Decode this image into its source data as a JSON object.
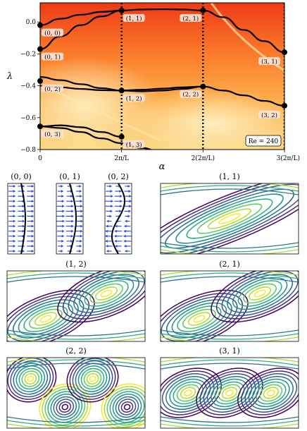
{
  "chart_data": [
    {
      "type": "line",
      "subtype": "spectrum over heatmap",
      "xlabel": "α",
      "ylabel": "λ",
      "xlim": [
        0,
        3
      ],
      "ylim": [
        -0.8,
        0.12
      ],
      "xticks": [
        0,
        1,
        2,
        3
      ],
      "xtick_labels": [
        "0",
        "2π/L",
        "2(2π/L)",
        "3(2π/L)"
      ],
      "yticks": [
        0.0,
        -0.2,
        -0.4,
        -0.6,
        -0.8
      ],
      "ytick_labels": [
        "0.0",
        "−0.2",
        "−0.4",
        "−0.6",
        "−0.8"
      ],
      "annotation": "Re = 240",
      "grid": false,
      "vlines": [
        1,
        2,
        3
      ],
      "heatmap_colormap": "YlOrRd",
      "series": [
        {
          "x": [
            0,
            0.25,
            0.5,
            0.75,
            1.0,
            1.25,
            1.5,
            1.75,
            2.0,
            2.25,
            2.5,
            2.75,
            3.0
          ],
          "y": [
            -0.02,
            0.02,
            0.045,
            0.063,
            0.072,
            0.078,
            0.08,
            0.078,
            0.072,
            0.03,
            -0.05,
            -0.12,
            -0.19
          ]
        },
        {
          "x": [
            0,
            0.25,
            0.5,
            0.75,
            1.0
          ],
          "y": [
            -0.17,
            -0.09,
            -0.02,
            0.035,
            0.072
          ]
        },
        {
          "x": [
            0,
            0.25,
            0.5,
            0.75,
            1.0,
            1.25,
            1.5,
            1.75,
            2.0,
            2.25,
            2.5,
            2.75,
            3.0
          ],
          "y": [
            -0.345,
            -0.365,
            -0.39,
            -0.415,
            -0.43,
            -0.435,
            -0.43,
            -0.42,
            -0.405,
            -0.43,
            -0.46,
            -0.495,
            -0.525
          ]
        },
        {
          "x": [
            0,
            0.25,
            0.5,
            0.75,
            1.0,
            1.25,
            1.5,
            1.75,
            2.0
          ],
          "y": [
            -0.4,
            -0.41,
            -0.42,
            -0.428,
            -0.43,
            -0.425,
            -0.418,
            -0.41,
            -0.405
          ]
        },
        {
          "x": [
            0,
            0.25,
            0.5,
            0.75,
            1.0,
            1.25,
            1.5,
            1.75,
            2.0
          ],
          "y": [
            -0.655,
            -0.665,
            -0.69,
            -0.73,
            -0.76,
            -0.79,
            -0.82,
            -0.85,
            -0.88
          ]
        },
        {
          "x": [
            0,
            0.25,
            0.5,
            0.75,
            1.0
          ],
          "y": [
            -0.655,
            -0.648,
            -0.66,
            -0.69,
            -0.72
          ]
        }
      ],
      "points": [
        {
          "label": "(0, 0)",
          "x": 0,
          "y": -0.02
        },
        {
          "label": "(0, 1)",
          "x": 0,
          "y": -0.17
        },
        {
          "label": "(0, 2)",
          "x": 0,
          "y": -0.37
        },
        {
          "label": "(0, 3)",
          "x": 0,
          "y": -0.655
        },
        {
          "label": "(1, 1)",
          "x": 1,
          "y": 0.072
        },
        {
          "label": "(1, 2)",
          "x": 1,
          "y": -0.43
        },
        {
          "label": "(1, 3)",
          "x": 1,
          "y": -0.72
        },
        {
          "label": "(2, 1)",
          "x": 2,
          "y": 0.072
        },
        {
          "label": "(2, 2)",
          "x": 2,
          "y": -0.405
        },
        {
          "label": "(3, 1)",
          "x": 3,
          "y": -0.19
        },
        {
          "label": "(3, 2)",
          "x": 3,
          "y": -0.525
        }
      ]
    },
    {
      "type": "table",
      "subtype": "mode shape panels",
      "panels": [
        {
          "title": "(0, 0)",
          "kind": "quiver",
          "waves": 0
        },
        {
          "title": "(0, 1)",
          "kind": "quiver",
          "waves": 1
        },
        {
          "title": "(0, 2)",
          "kind": "quiver",
          "waves": 2
        },
        {
          "title": "(1, 1)",
          "kind": "contour",
          "centers": 1
        },
        {
          "title": "(1, 2)",
          "kind": "contour",
          "centers": 2
        },
        {
          "title": "(2, 1)",
          "kind": "contour",
          "centers": 2
        },
        {
          "title": "(2, 2)",
          "kind": "contour",
          "centers": 4
        },
        {
          "title": "(3, 1)",
          "kind": "contour",
          "centers": 3
        }
      ],
      "colormap": "viridis"
    }
  ]
}
